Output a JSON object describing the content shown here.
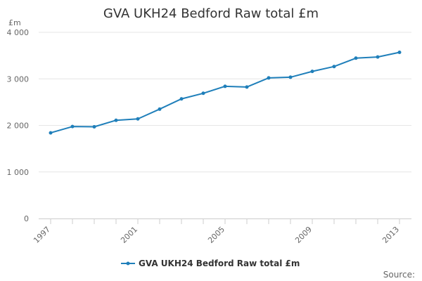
{
  "chart_data": {
    "type": "line",
    "title": "GVA UKH24 Bedford Raw total £m",
    "ylabel": "£m",
    "xlabel": "",
    "x": [
      1997,
      1998,
      1999,
      2000,
      2001,
      2002,
      2003,
      2004,
      2005,
      2006,
      2007,
      2008,
      2009,
      2010,
      2011,
      2012,
      2013
    ],
    "x_tick_labels": [
      "1997",
      "2001",
      "2005",
      "2009",
      "2013"
    ],
    "x_tick_values": [
      1997,
      2001,
      2005,
      2009,
      2013
    ],
    "y_tick_labels": [
      "0",
      "1 000",
      "2 000",
      "3 000",
      "4 000"
    ],
    "y_tick_values": [
      0,
      1000,
      2000,
      3000,
      4000
    ],
    "ylim": [
      0,
      4000
    ],
    "xlim": [
      1997,
      2013
    ],
    "grid": true,
    "legend_position": "bottom",
    "series": [
      {
        "name": "GVA UKH24 Bedford Raw total £m",
        "color": "#1f7fba",
        "values": [
          1840,
          1975,
          1970,
          2110,
          2140,
          2350,
          2570,
          2690,
          2840,
          2825,
          3020,
          3035,
          3160,
          3265,
          3445,
          3470,
          3570
        ]
      }
    ],
    "source_label": "Source:"
  }
}
